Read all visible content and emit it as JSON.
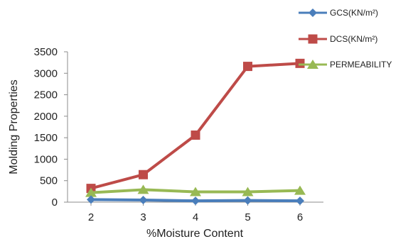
{
  "chart_data": {
    "type": "line",
    "xlabel": "%Moisture Content",
    "ylabel": "Molding Properties",
    "x": [
      2,
      3,
      4,
      5,
      6
    ],
    "ylim": [
      0,
      3500
    ],
    "yticks": [
      0,
      500,
      1000,
      1500,
      2000,
      2500,
      3000,
      3500
    ],
    "grid": false,
    "legend_position": "top-right",
    "series": [
      {
        "name": "GCS(KN/m²)",
        "values": [
          60,
          50,
          30,
          40,
          30
        ],
        "color": "#4a7ebb",
        "marker": "diamond"
      },
      {
        "name": "DCS(KN/m²)",
        "values": [
          320,
          640,
          1560,
          3160,
          3230
        ],
        "color": "#be4b48",
        "marker": "square"
      },
      {
        "name": "PERMEABILITY",
        "values": [
          220,
          290,
          240,
          240,
          270
        ],
        "color": "#98b954",
        "marker": "triangle"
      }
    ]
  }
}
